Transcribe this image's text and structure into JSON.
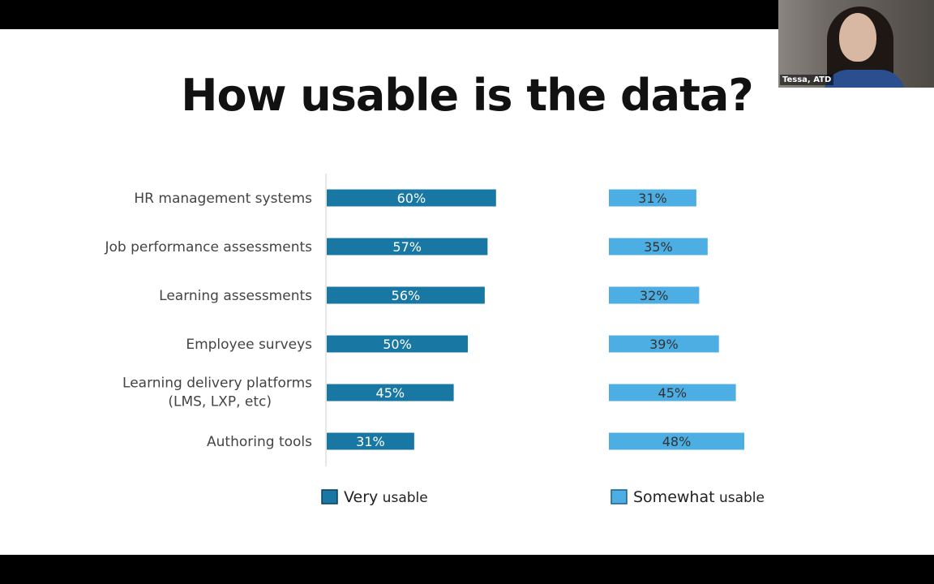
{
  "slide": {
    "title": "How usable is the data?"
  },
  "video": {
    "participant_name": "Tessa, ATD"
  },
  "legend": {
    "very_main": "Very",
    "very_rest": " usable",
    "somewhat_main": "Somewhat",
    "somewhat_rest": " usable"
  },
  "colors": {
    "very_usable": "#1878a3",
    "somewhat_usable": "#4daee3",
    "axis": "#cfcfcf"
  },
  "chart_data": {
    "type": "bar",
    "orientation": "horizontal",
    "title": "How usable is the data?",
    "value_format": "percent",
    "categories": [
      [
        "HR management systems"
      ],
      [
        "Job performance assessments"
      ],
      [
        "Learning assessments"
      ],
      [
        "Employee surveys"
      ],
      [
        "Learning delivery platforms",
        "(LMS, LXP, etc)"
      ],
      [
        "Authoring tools"
      ]
    ],
    "series": [
      {
        "name": "Very usable",
        "values": [
          60,
          57,
          56,
          50,
          45,
          31
        ],
        "labels": [
          "60%",
          "57%",
          "56%",
          "50%",
          "45%",
          "31%"
        ]
      },
      {
        "name": "Somewhat usable",
        "values": [
          31,
          35,
          32,
          39,
          45,
          48
        ],
        "labels": [
          "31%",
          "35%",
          "32%",
          "39%",
          "45%",
          "48%"
        ]
      }
    ],
    "legend_position": "bottom",
    "grid": false
  }
}
